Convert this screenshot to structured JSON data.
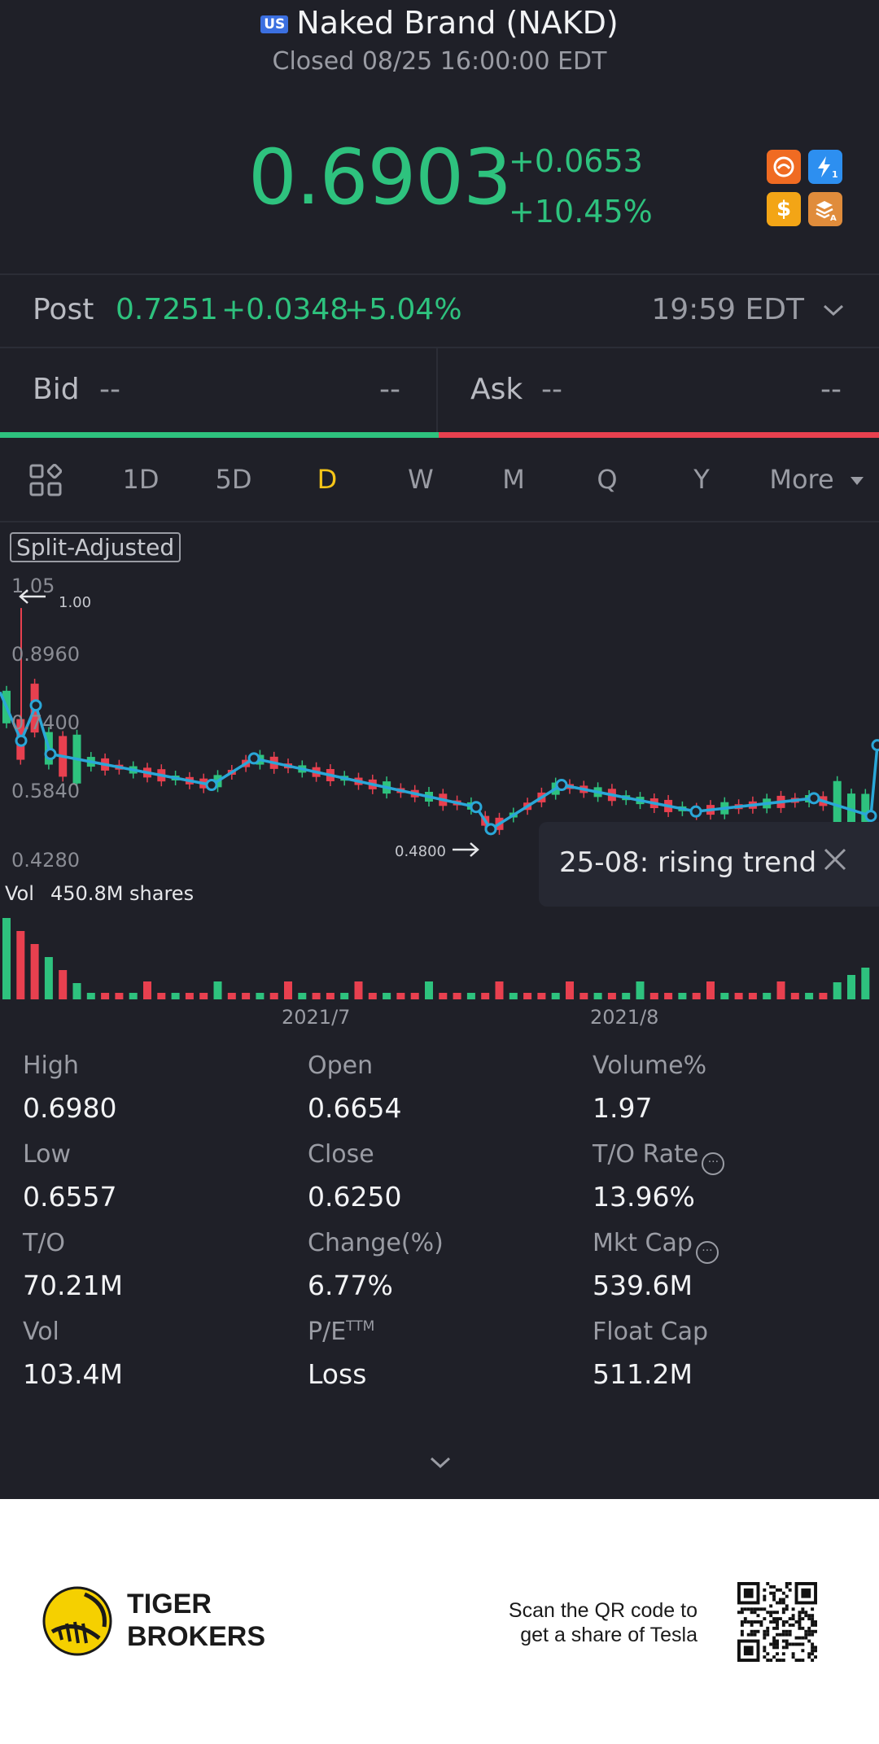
{
  "header": {
    "market_flag": "US",
    "title": "Naked Brand (NAKD)",
    "status": "Closed 08/25 16:00:00 EDT",
    "price": "0.6903",
    "change": "+0.0653",
    "change_pct": "+10.45%",
    "badges": [
      "tiger-badge-icon",
      "lightning-level1-icon",
      "dollar-icon",
      "stack-a-icon"
    ]
  },
  "post": {
    "label": "Post",
    "price": "0.7251",
    "change": "+0.0348",
    "change_pct": "+5.04%",
    "time": "19:59 EDT"
  },
  "quote": {
    "bid_label": "Bid",
    "bid_price": "--",
    "bid_size": "--",
    "ask_label": "Ask",
    "ask_price": "--",
    "ask_size": "--"
  },
  "tabs": [
    "1D",
    "5D",
    "D",
    "W",
    "M",
    "Q",
    "Y",
    "More"
  ],
  "active_tab": "D",
  "chart": {
    "adjust_label": "Split-Adjusted",
    "y_labels": [
      "1.05",
      "0.8960",
      "0.7400",
      "0.5840",
      "0.4280"
    ],
    "high_marker": "1.00",
    "low_marker": "0.4800",
    "volume_label": "Vol",
    "volume_value": "450.8M shares",
    "x_labels": [
      "2021/7",
      "2021/8"
    ],
    "tooltip": "25-08: rising trend"
  },
  "chart_data": {
    "type": "candlestick",
    "ylim": [
      0.428,
      1.05
    ],
    "x_labels": [
      "2021/7",
      "2021/8"
    ],
    "trend_line_points": [
      0.81,
      0.7,
      0.78,
      0.67,
      0.6,
      0.66,
      0.55,
      0.5,
      0.6,
      0.54,
      0.57,
      0.53,
      0.69
    ],
    "high_marker": 1.0,
    "low_marker": 0.48
  },
  "stats": [
    {
      "label": "High",
      "value": "0.6980"
    },
    {
      "label": "Open",
      "value": "0.6654"
    },
    {
      "label": "Volume%",
      "value": "1.97"
    },
    {
      "label": "Low",
      "value": "0.6557"
    },
    {
      "label": "Close",
      "value": "0.6250"
    },
    {
      "label": "T/O Rate",
      "value": "13.96%"
    },
    {
      "label": "T/O",
      "value": "70.21M"
    },
    {
      "label": "Change(%)",
      "value": "6.77%"
    },
    {
      "label": "Mkt Cap",
      "value": "539.6M"
    },
    {
      "label": "Vol",
      "value": "103.4M"
    },
    {
      "label": "P/E",
      "value": "Loss"
    },
    {
      "label": "Float Cap",
      "value": "511.2M"
    }
  ],
  "pe_suffix": "TTM",
  "footer": {
    "brand_line1": "TIGER",
    "brand_line2": "BROKERS",
    "qr_line1": "Scan the QR code to",
    "qr_line2": "get a share of Tesla"
  },
  "colors": {
    "up": "#2ec27e",
    "down": "#e8404f",
    "active_tab": "#f5c518",
    "trend_line": "#2aa7d8",
    "background": "#1f2028"
  }
}
